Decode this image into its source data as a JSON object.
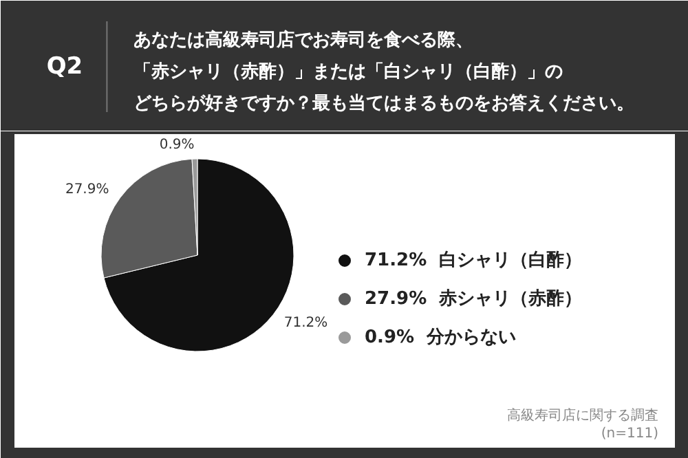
{
  "chart_data": {
    "type": "pie",
    "title": "Q2",
    "subtitle": "あなたは高級寿司店でお寿司を食べる際、「赤シャリ（赤酢）」または「白シャリ（白酢）」のどちらが好きですか？最も当てはまるものをお答えください。",
    "categories": [
      "白シャリ（白酢）",
      "赤シャリ（赤酢）",
      "分からない"
    ],
    "values": [
      71.2,
      27.9,
      0.9
    ],
    "colors": [
      "#111111",
      "#5a5a5a",
      "#9a9a9a"
    ],
    "value_labels": [
      "71.2%",
      "27.9%",
      "0.9%"
    ],
    "legend": "right",
    "annotations": [
      "高級寿司店に関する調査",
      "(n=111)"
    ]
  }
}
